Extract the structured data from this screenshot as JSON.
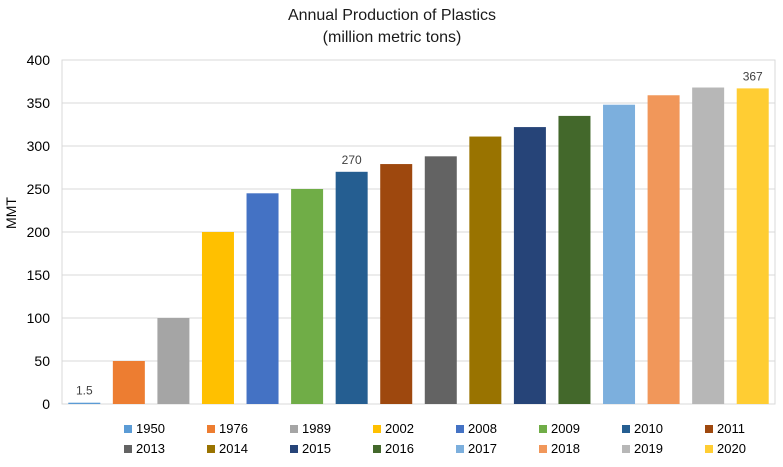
{
  "chart_data": {
    "type": "bar",
    "title": "Annual Production of Plastics",
    "subtitle": "(million metric tons)",
    "xlabel": "",
    "ylabel": "MMT",
    "ylim": [
      0,
      400
    ],
    "yticks": [
      0,
      50,
      100,
      150,
      200,
      250,
      300,
      350,
      400
    ],
    "grid": true,
    "legend_position": "bottom",
    "categories": [
      "1950",
      "1976",
      "1989",
      "2002",
      "2008",
      "2009",
      "2010",
      "2011",
      "2013",
      "2014",
      "2015",
      "2016",
      "2017",
      "2018",
      "2019",
      "2020"
    ],
    "values": [
      1.5,
      50,
      100,
      200,
      245,
      250,
      270,
      279,
      288,
      311,
      322,
      335,
      348,
      359,
      368,
      367
    ],
    "colors": [
      "#5b9bd5",
      "#ed7d31",
      "#a5a5a5",
      "#ffc000",
      "#4472c4",
      "#70ad47",
      "#255e91",
      "#9e480e",
      "#636363",
      "#997300",
      "#264478",
      "#43682b",
      "#7cafdd",
      "#f1975a",
      "#b7b7b7",
      "#ffcd33"
    ],
    "data_labels": [
      {
        "index": 0,
        "text": "1.5"
      },
      {
        "index": 6,
        "text": "270"
      },
      {
        "index": 15,
        "text": "367"
      }
    ]
  }
}
